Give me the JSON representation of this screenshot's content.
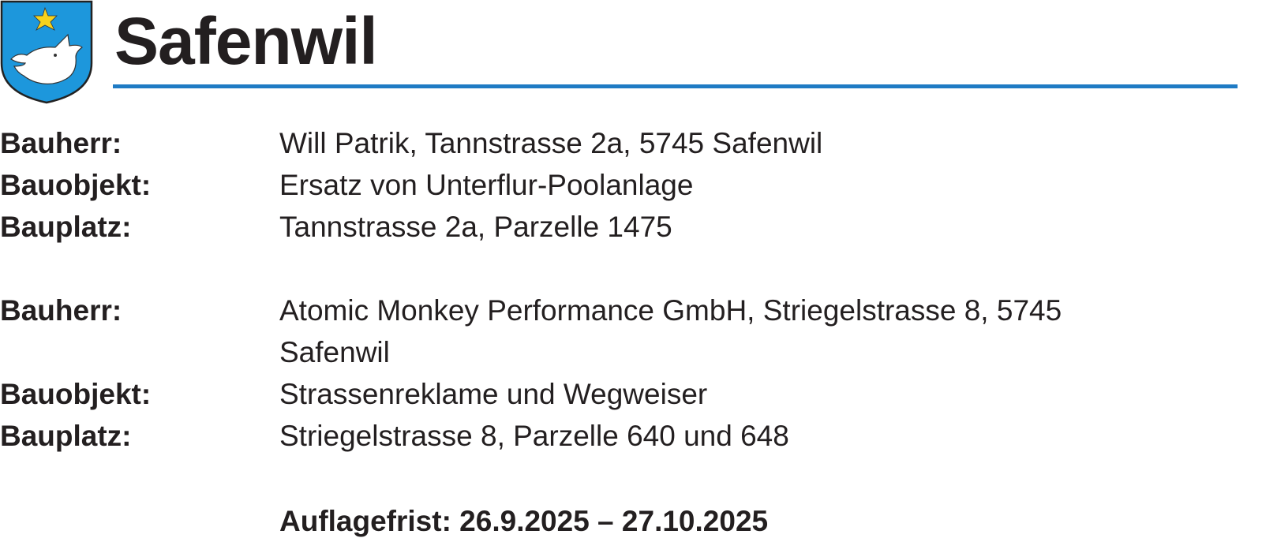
{
  "header": {
    "title": "Safenwil",
    "accent_color": "#1f7bc4",
    "crest_icon": "coat-of-arms-boar-star"
  },
  "entries": [
    {
      "rows": [
        {
          "label": "Bauherr:",
          "value": "Will Patrik, Tannstrasse 2a, 5745 Safenwil"
        },
        {
          "label": "Bauobjekt:",
          "value": "Ersatz von Unterflur-Poolanlage"
        },
        {
          "label": "Bauplatz:",
          "value": "Tannstrasse 2a, Parzelle 1475"
        }
      ]
    },
    {
      "rows": [
        {
          "label": "Bauherr:",
          "value": "Atomic Monkey Performance GmbH, Striegelstrasse 8, 5745 Safenwil"
        },
        {
          "label": "Bauobjekt:",
          "value": "Strassenreklame und Wegweiser"
        },
        {
          "label": "Bauplatz:",
          "value": "Striegelstrasse 8, Parzelle 640 und 648"
        }
      ]
    }
  ],
  "deadline": "Auflagefrist: 26.9.2025 – 27.10.2025"
}
